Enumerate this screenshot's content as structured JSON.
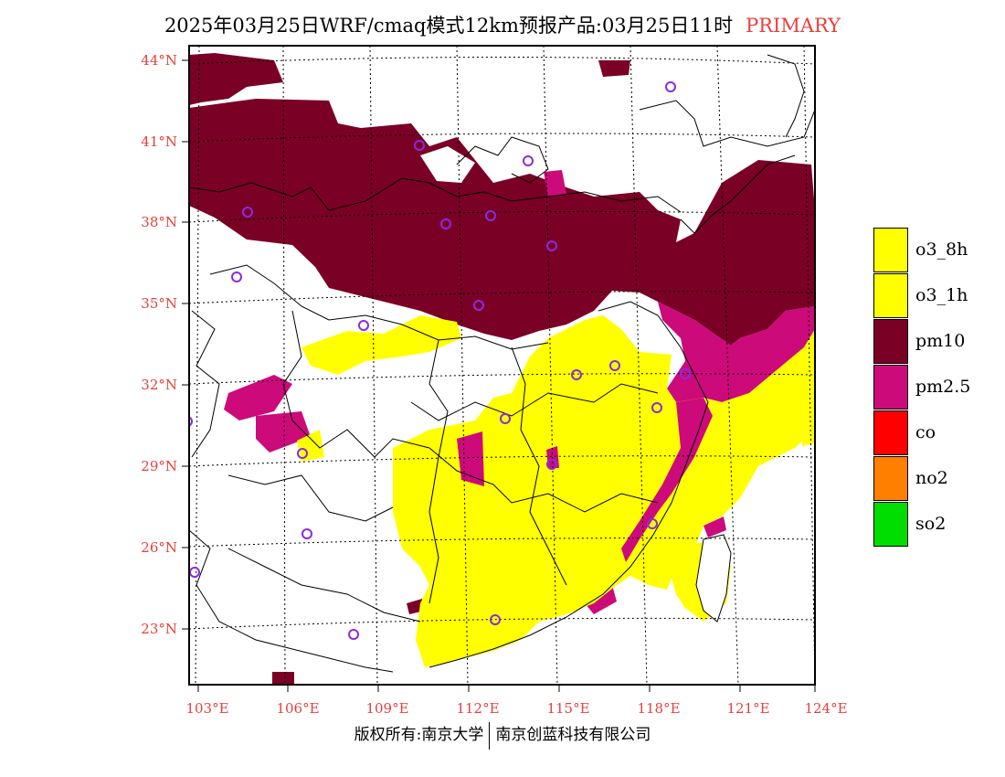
{
  "header": {
    "title": "2025年03月25日WRF/cmaq模式12km预报产品:03月25日11时",
    "tag": "PRIMARY",
    "tag_color": "#e8403c"
  },
  "map": {
    "lat_labels": [
      "44°N",
      "41°N",
      "38°N",
      "35°N",
      "32°N",
      "29°N",
      "26°N",
      "23°N"
    ],
    "lon_labels": [
      "103°E",
      "106°E",
      "109°E",
      "112°E",
      "115°E",
      "118°E",
      "121°E",
      "124°E"
    ],
    "label_color": "#e8403c",
    "category_colors": {
      "o3_8h": "#ffff00",
      "o3_1h": "#ffff00",
      "pm10": "#7a0026",
      "pm2.5": "#cc0a7a",
      "co": "#ff0000",
      "no2": "#ff7f00",
      "so2": "#00dd00"
    },
    "station_marker_color": "#8a2be2"
  },
  "legend": {
    "items": [
      {
        "label": "o3_8h",
        "color": "#ffff00"
      },
      {
        "label": "o3_1h",
        "color": "#ffff00"
      },
      {
        "label": "pm10",
        "color": "#7a0026"
      },
      {
        "label": "pm2.5",
        "color": "#cc0a7a"
      },
      {
        "label": "co",
        "color": "#ff0000"
      },
      {
        "label": "no2",
        "color": "#ff7f00"
      },
      {
        "label": "so2",
        "color": "#00dd00"
      }
    ]
  },
  "footer": {
    "left": "版权所有:南京大学",
    "right": "南京创蓝科技有限公司"
  }
}
